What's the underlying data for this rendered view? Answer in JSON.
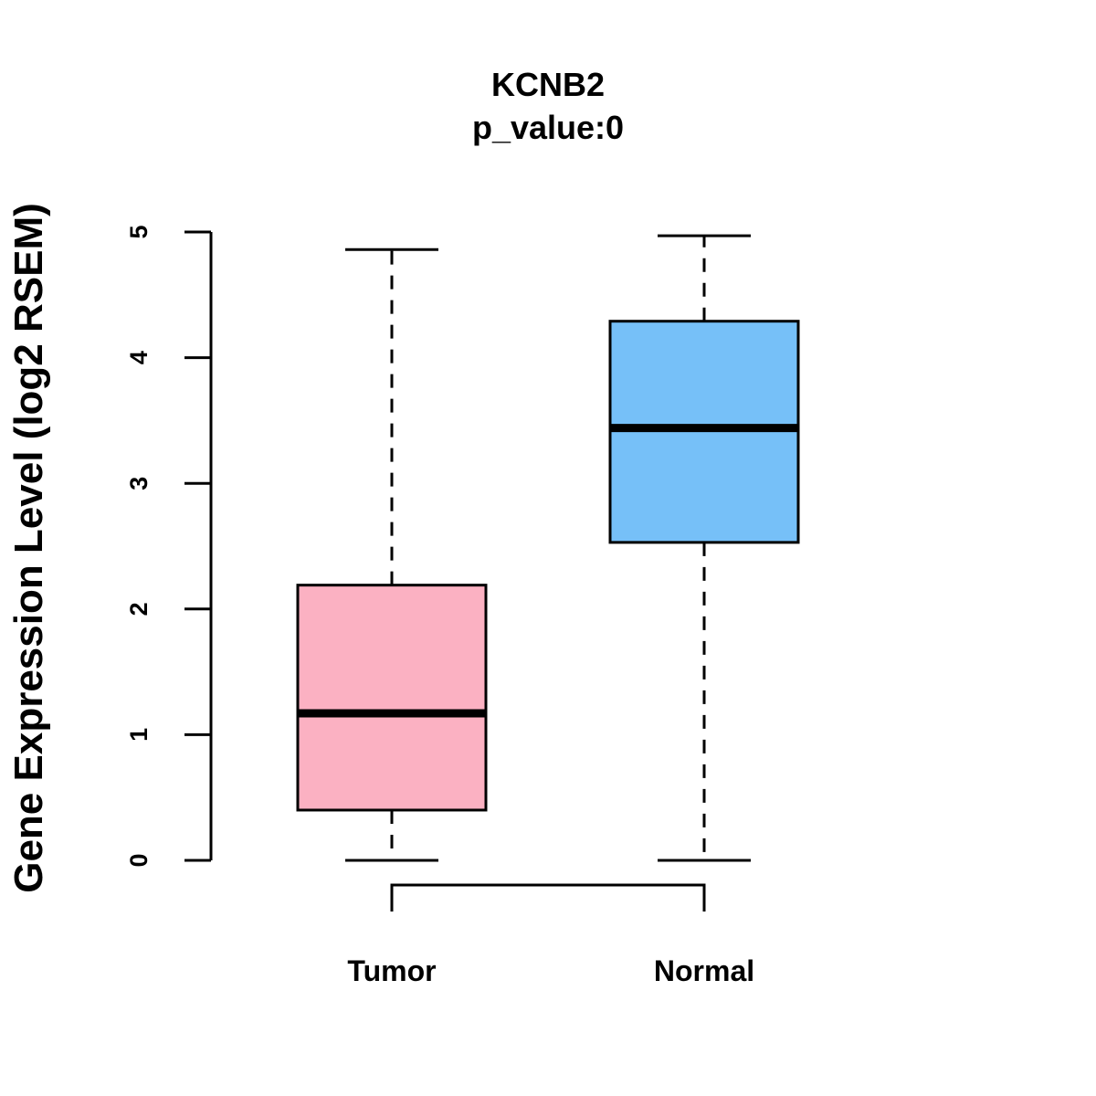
{
  "chart_data": {
    "type": "boxplot",
    "title": "KCNB2",
    "subtitle": "p_value:0",
    "xlabel": "",
    "ylabel": "Gene Expression Level (log2 RSEM)",
    "ylim": [
      0,
      5
    ],
    "yticks": [
      "0",
      "1",
      "2",
      "3",
      "4",
      "5"
    ],
    "grid": false,
    "categories": [
      "Tumor",
      "Normal"
    ],
    "boxes": [
      {
        "name": "Tumor",
        "min": 0.0,
        "q1": 0.4,
        "median": 1.17,
        "q3": 2.19,
        "max": 4.86,
        "color": "#FBB1C2"
      },
      {
        "name": "Normal",
        "min": 0.0,
        "q1": 2.53,
        "median": 3.44,
        "q3": 4.29,
        "max": 4.97,
        "color": "#76C0F8"
      }
    ],
    "comparison_bracket": [
      "Tumor",
      "Normal"
    ]
  }
}
